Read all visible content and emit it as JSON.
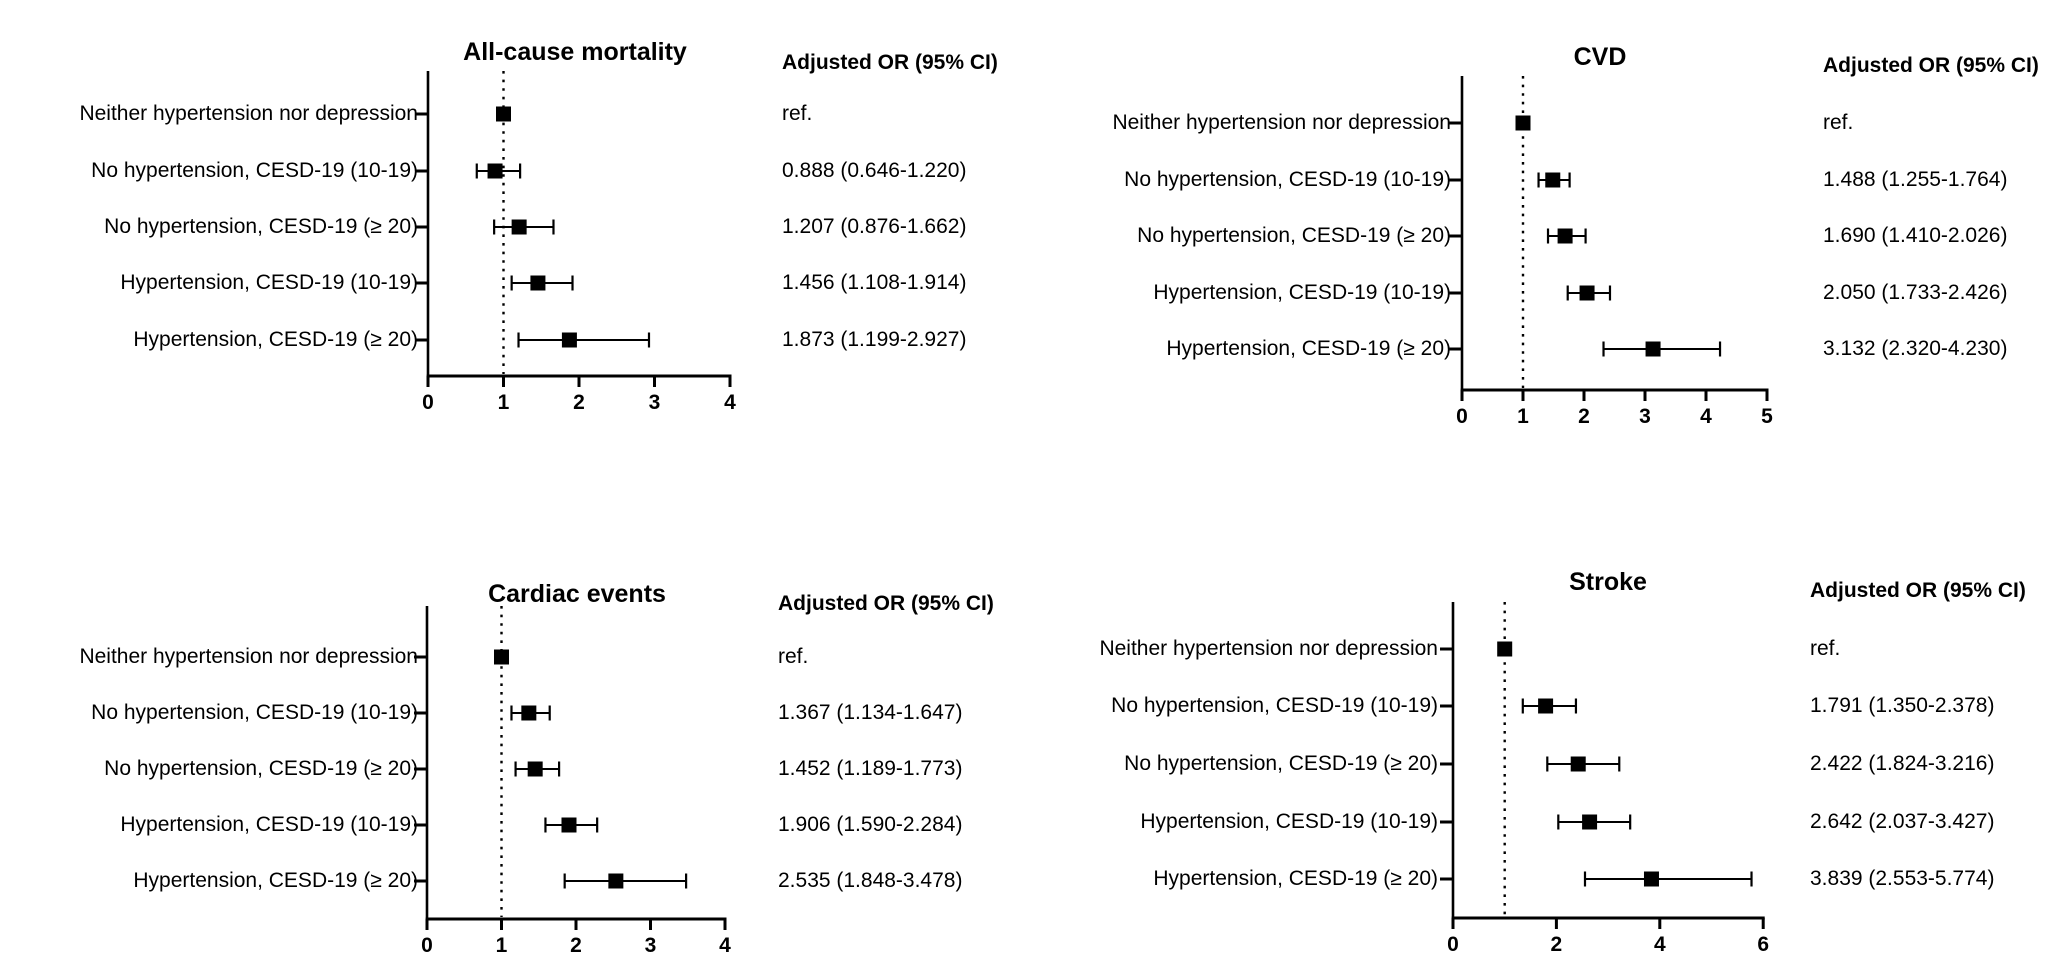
{
  "figure": {
    "background": "#ffffff",
    "ink": "#000000"
  },
  "chart_data": [
    {
      "type": "forest",
      "title": "All-cause mortality",
      "or_header": "Adjusted OR (95% CI)",
      "ref_line_x": 1,
      "xlim": [
        0,
        4
      ],
      "ticks": [
        "0",
        "1",
        "2",
        "3",
        "4"
      ],
      "rows": [
        {
          "label": "Neither hypertension nor depression",
          "or": 1.0,
          "ci_low": null,
          "ci_high": null,
          "text": "ref."
        },
        {
          "label": "No hypertension, CESD-19 (10-19)",
          "or": 0.888,
          "ci_low": 0.646,
          "ci_high": 1.22,
          "text": "0.888 (0.646-1.220)"
        },
        {
          "label": "No hypertension, CESD-19 (≥ 20)",
          "or": 1.207,
          "ci_low": 0.876,
          "ci_high": 1.662,
          "text": "1.207 (0.876-1.662)"
        },
        {
          "label": "Hypertension, CESD-19 (10-19)",
          "or": 1.456,
          "ci_low": 1.108,
          "ci_high": 1.914,
          "text": "1.456 (1.108-1.914)"
        },
        {
          "label": "Hypertension, CESD-19 (≥ 20)",
          "or": 1.873,
          "ci_low": 1.199,
          "ci_high": 2.927,
          "text": "1.873 (1.199-2.927)"
        }
      ]
    },
    {
      "type": "forest",
      "title": "CVD",
      "or_header": "Adjusted OR (95% CI)",
      "ref_line_x": 1,
      "xlim": [
        0,
        5
      ],
      "ticks": [
        "0",
        "1",
        "2",
        "3",
        "4",
        "5"
      ],
      "rows": [
        {
          "label": "Neither hypertension nor depression",
          "or": 1.0,
          "ci_low": null,
          "ci_high": null,
          "text": "ref."
        },
        {
          "label": "No hypertension, CESD-19 (10-19)",
          "or": 1.488,
          "ci_low": 1.255,
          "ci_high": 1.764,
          "text": "1.488 (1.255-1.764)"
        },
        {
          "label": "No hypertension, CESD-19 (≥ 20)",
          "or": 1.69,
          "ci_low": 1.41,
          "ci_high": 2.026,
          "text": "1.690 (1.410-2.026)"
        },
        {
          "label": "Hypertension, CESD-19 (10-19)",
          "or": 2.05,
          "ci_low": 1.733,
          "ci_high": 2.426,
          "text": "2.050 (1.733-2.426)"
        },
        {
          "label": "Hypertension, CESD-19 (≥ 20)",
          "or": 3.132,
          "ci_low": 2.32,
          "ci_high": 4.23,
          "text": "3.132 (2.320-4.230)"
        }
      ]
    },
    {
      "type": "forest",
      "title": "Cardiac events",
      "or_header": "Adjusted OR (95% CI)",
      "ref_line_x": 1,
      "xlim": [
        0,
        4
      ],
      "ticks": [
        "0",
        "1",
        "2",
        "3",
        "4"
      ],
      "rows": [
        {
          "label": "Neither hypertension nor depression",
          "or": 1.0,
          "ci_low": null,
          "ci_high": null,
          "text": "ref."
        },
        {
          "label": "No hypertension, CESD-19 (10-19)",
          "or": 1.367,
          "ci_low": 1.134,
          "ci_high": 1.647,
          "text": "1.367 (1.134-1.647)"
        },
        {
          "label": "No hypertension, CESD-19 (≥ 20)",
          "or": 1.452,
          "ci_low": 1.189,
          "ci_high": 1.773,
          "text": "1.452 (1.189-1.773)"
        },
        {
          "label": "Hypertension, CESD-19 (10-19)",
          "or": 1.906,
          "ci_low": 1.59,
          "ci_high": 2.284,
          "text": "1.906 (1.590-2.284)"
        },
        {
          "label": "Hypertension, CESD-19 (≥ 20)",
          "or": 2.535,
          "ci_low": 1.848,
          "ci_high": 3.478,
          "text": "2.535 (1.848-3.478)"
        }
      ]
    },
    {
      "type": "forest",
      "title": "Stroke",
      "or_header": "Adjusted OR (95% CI)",
      "ref_line_x": 1,
      "xlim": [
        0,
        6
      ],
      "ticks": [
        "0",
        "2",
        "4",
        "6"
      ],
      "rows": [
        {
          "label": "Neither hypertension nor depression",
          "or": 1.0,
          "ci_low": null,
          "ci_high": null,
          "text": "ref."
        },
        {
          "label": "No hypertension, CESD-19 (10-19)",
          "or": 1.791,
          "ci_low": 1.35,
          "ci_high": 2.378,
          "text": "1.791 (1.350-2.378)"
        },
        {
          "label": "No hypertension, CESD-19 (≥ 20)",
          "or": 2.422,
          "ci_low": 1.824,
          "ci_high": 3.216,
          "text": "2.422 (1.824-3.216)"
        },
        {
          "label": "Hypertension, CESD-19 (10-19)",
          "or": 2.642,
          "ci_low": 2.037,
          "ci_high": 3.427,
          "text": "2.642 (2.037-3.427)"
        },
        {
          "label": "Hypertension, CESD-19 (≥ 20)",
          "or": 3.839,
          "ci_low": 2.553,
          "ci_high": 5.774,
          "text": "3.839 (2.553-5.774)"
        }
      ]
    }
  ]
}
